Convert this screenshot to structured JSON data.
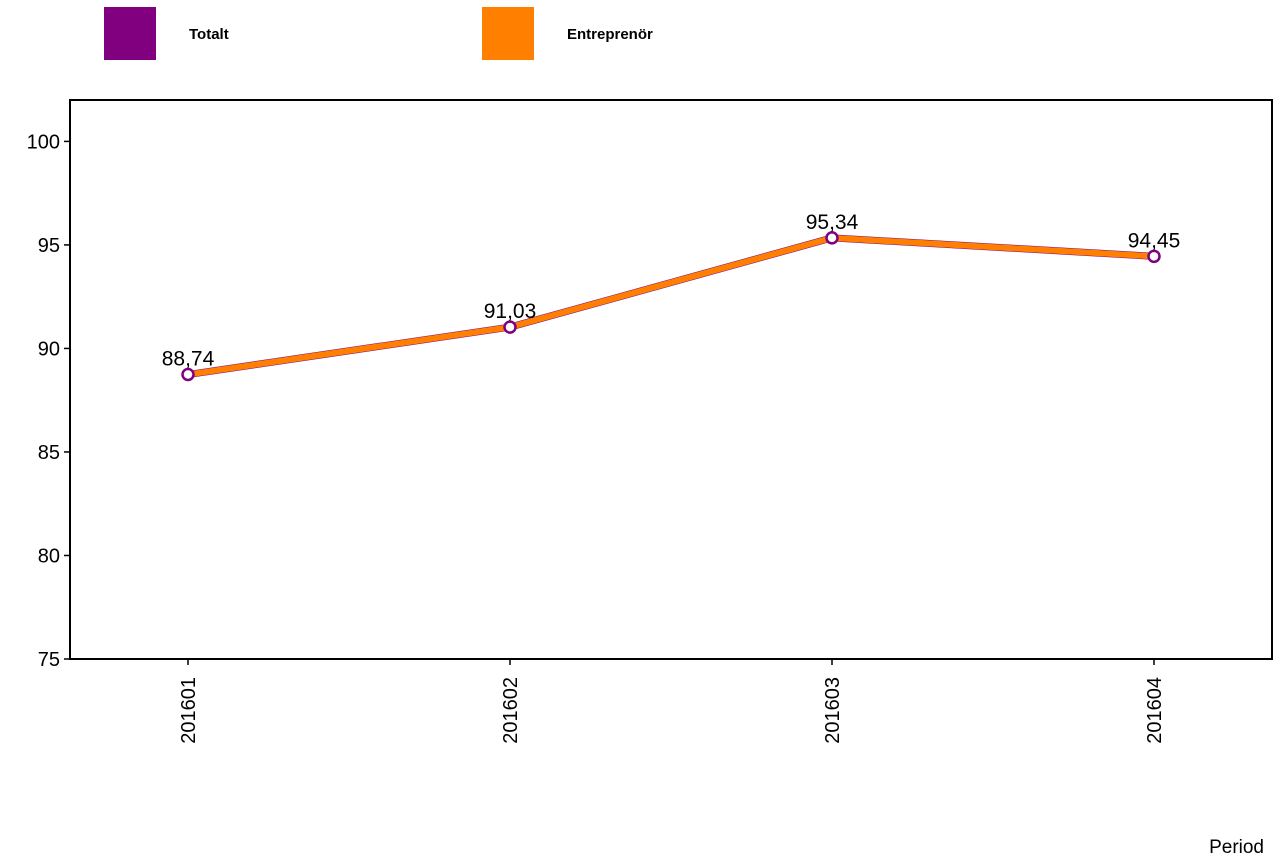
{
  "chart_data": {
    "type": "line",
    "title": "",
    "xlabel": "Period",
    "ylabel": "",
    "categories": [
      "201601",
      "201602",
      "201603",
      "201604"
    ],
    "ylim": [
      75,
      102
    ],
    "yticks": [
      75,
      80,
      85,
      90,
      95,
      100
    ],
    "ytick_labels": [
      "75",
      "80",
      "85",
      "90",
      "95",
      "100"
    ],
    "grid": false,
    "legend_position": "top",
    "series": [
      {
        "name": "Totalt",
        "color": "#800080",
        "values": [
          88.74,
          91.03,
          95.34,
          94.45
        ]
      },
      {
        "name": "Entreprenör",
        "color": "#FF8000",
        "values": [
          88.74,
          91.03,
          95.34,
          94.45
        ]
      }
    ],
    "data_labels": [
      "88,74",
      "91,03",
      "95,34",
      "94,45"
    ]
  }
}
